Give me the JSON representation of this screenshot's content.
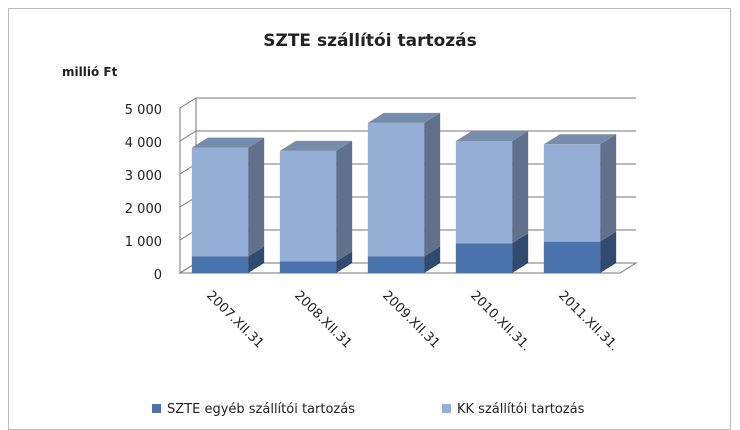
{
  "chart_data": {
    "type": "bar3d_stacked",
    "title": "SZTE szállítói tartozás",
    "y_axis_label": "millió Ft",
    "categories": [
      "2007.XII.31",
      "2008.XII.31",
      "2009.XII.31",
      "2010.XII.31.",
      "2011.XII.31."
    ],
    "series": [
      {
        "name": "SZTE egyéb szállítói tartozás",
        "color": "#4a72ad",
        "values": [
          500,
          350,
          500,
          900,
          950
        ]
      },
      {
        "name": "KK szállítói tartozás",
        "color": "#95aed6",
        "values": [
          3300,
          3350,
          4050,
          3100,
          2950
        ]
      }
    ],
    "ylim": [
      0,
      5000
    ],
    "yticks": [
      0,
      {
        "value": 1000,
        "label": "1 000"
      },
      {
        "value": 2000,
        "label": "2 000"
      },
      {
        "value": 3000,
        "label": "3 000"
      },
      {
        "value": 4000,
        "label": "4 000"
      },
      {
        "value": 5000,
        "label": "5 000"
      }
    ],
    "grid": true,
    "legend": "bottom"
  }
}
